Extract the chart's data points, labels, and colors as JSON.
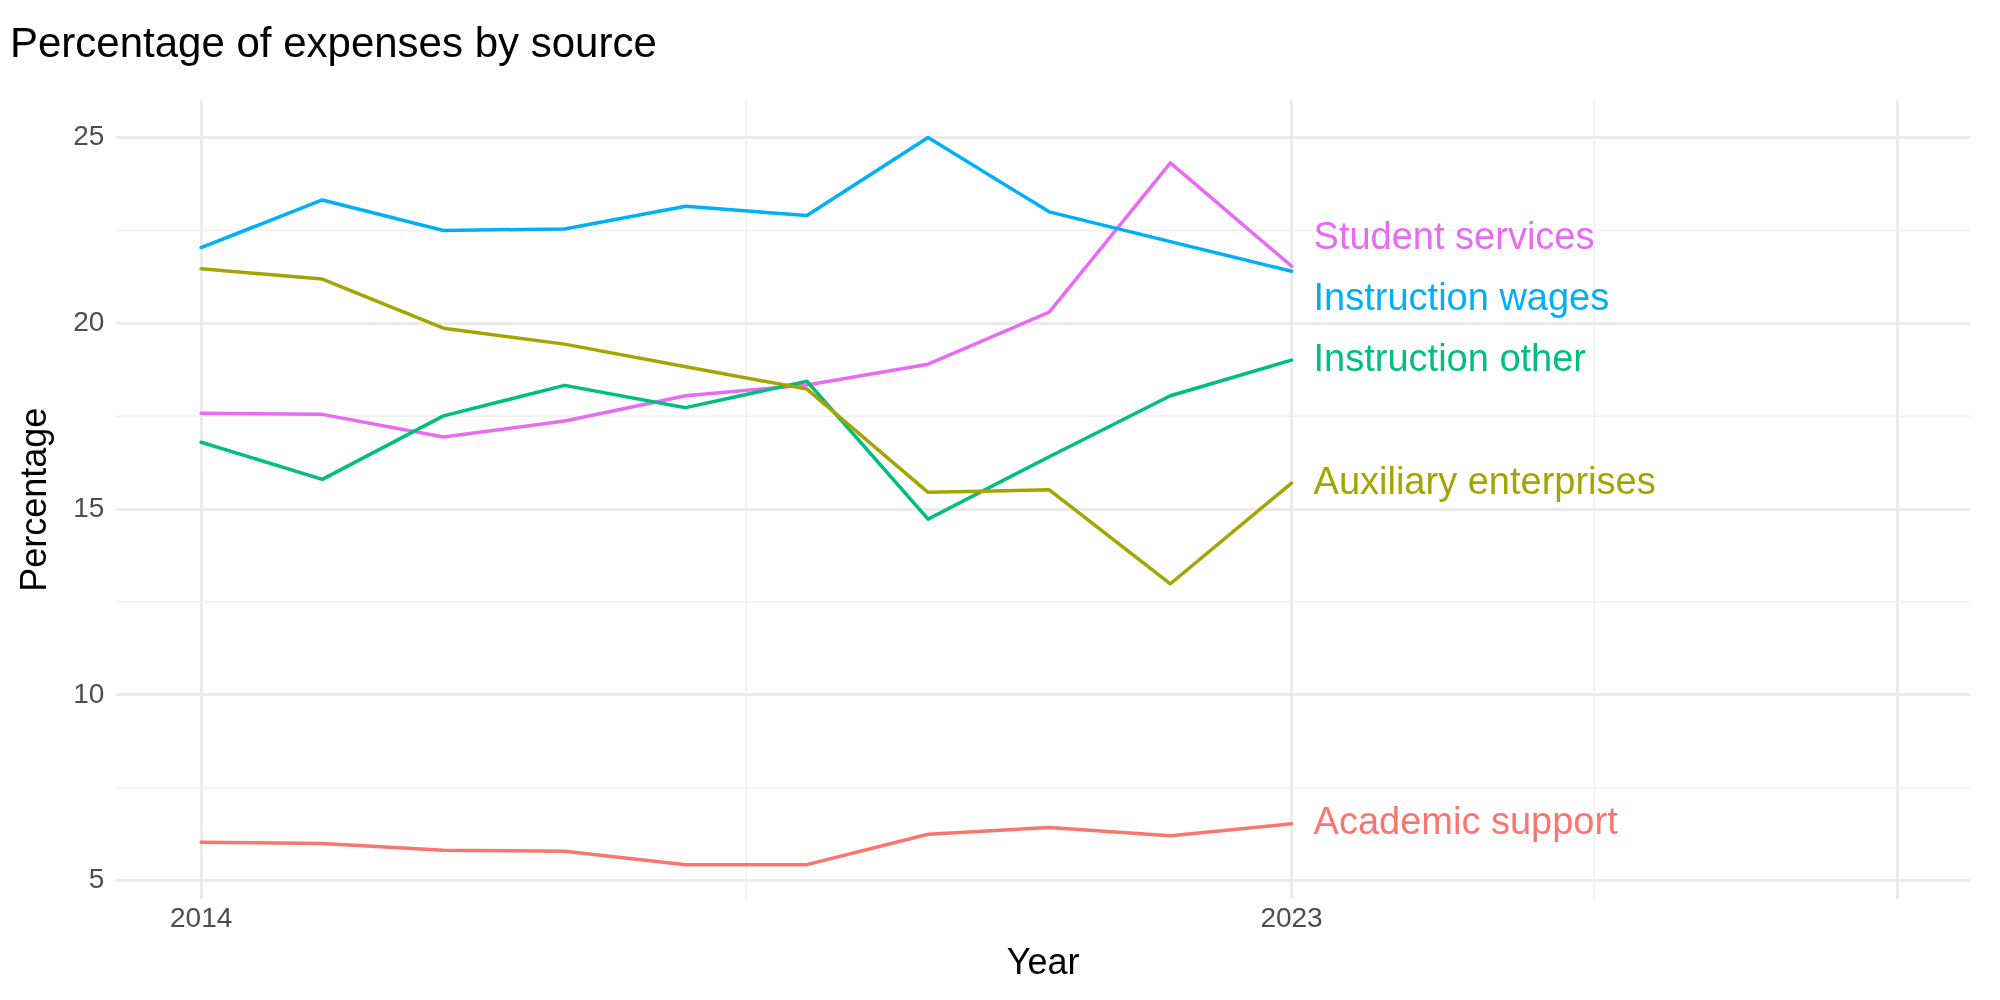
{
  "chart_data": {
    "type": "line",
    "title": "Percentage of expenses by source",
    "xlabel": "Year",
    "ylabel": "Percentage",
    "x": [
      2014,
      2015,
      2016,
      2017,
      2018,
      2019,
      2020,
      2021,
      2022,
      2023
    ],
    "series": [
      {
        "name": "Academic support",
        "color": "#f8766d",
        "values": [
          6.03,
          6.0,
          5.82,
          5.79,
          5.43,
          5.43,
          6.25,
          6.43,
          6.21,
          6.53
        ]
      },
      {
        "name": "Auxiliary enterprises",
        "color": "#a3a500",
        "values": [
          21.47,
          21.19,
          19.87,
          19.44,
          18.83,
          18.23,
          15.45,
          15.52,
          12.99,
          15.7
        ]
      },
      {
        "name": "Instruction other",
        "color": "#00bf7d",
        "values": [
          16.8,
          15.8,
          17.51,
          18.33,
          17.73,
          18.44,
          14.73,
          16.41,
          18.05,
          19.01
        ]
      },
      {
        "name": "Instruction wages",
        "color": "#00b0f6",
        "values": [
          22.04,
          23.32,
          22.5,
          22.54,
          23.15,
          22.9,
          25.0,
          23.0,
          22.2,
          21.4
        ]
      },
      {
        "name": "Student services",
        "color": "#e76bf3",
        "values": [
          17.58,
          17.55,
          16.94,
          17.37,
          18.05,
          18.34,
          18.9,
          20.3,
          24.32,
          21.54
        ]
      }
    ],
    "xlim": [
      2013.3,
      2028.6
    ],
    "xticks": [
      2014,
      2023,
      {
        "value": 2028,
        "label": null
      }
    ],
    "ylim": [
      4.5,
      26
    ],
    "yticks": [
      5,
      10,
      15,
      20,
      25
    ],
    "grid": true,
    "legend": false,
    "marker": "none",
    "line_style": "solid"
  }
}
